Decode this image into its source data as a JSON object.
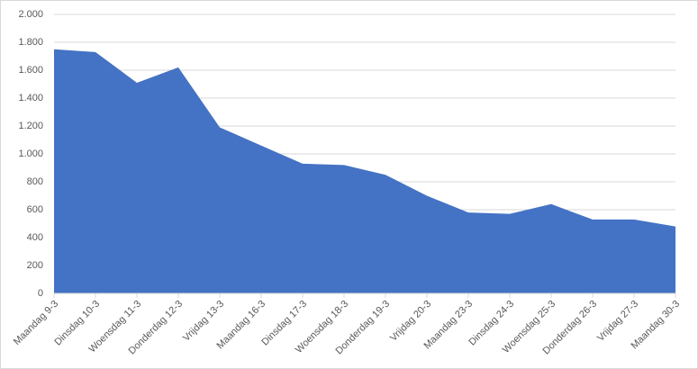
{
  "chart_data": {
    "type": "area",
    "categories": [
      "Maandag 9-3",
      "Dinsdag 10-3",
      "Woensdag 11-3",
      "Donderdag 12-3",
      "Vrijdag 13-3",
      "Maandag 16-3",
      "Dinsdag 17-3",
      "Woensdag 18-3",
      "Donderdag 19-3",
      "Vrijdag 20-3",
      "Maandag 23-3",
      "Dinsdag 24-3",
      "Woensdag 25-3",
      "Donderdag 26-3",
      "Vrijdag 27-3",
      "Maandag 30-3"
    ],
    "values": [
      1750,
      1730,
      1510,
      1620,
      1190,
      1060,
      930,
      920,
      850,
      700,
      580,
      570,
      640,
      530,
      530,
      480
    ],
    "color": "#4472c4",
    "ylim": [
      0,
      2000
    ],
    "yticks": [
      0,
      200,
      400,
      600,
      800,
      {
        "value": 1000,
        "label": "1.000"
      },
      {
        "value": 1200,
        "label": "1.200"
      },
      {
        "value": 1400,
        "label": "1.400"
      },
      {
        "value": 1600,
        "label": "1.600"
      },
      {
        "value": 1800,
        "label": "1.800"
      },
      {
        "value": 2000,
        "label": "2.000"
      }
    ],
    "grid": true
  }
}
